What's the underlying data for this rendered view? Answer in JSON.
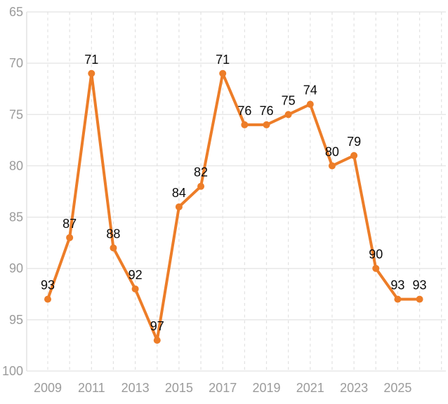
{
  "chart_data": {
    "type": "line",
    "title": "",
    "xlabel": "",
    "ylabel": "",
    "x": [
      2009,
      2010,
      2011,
      2012,
      2013,
      2014,
      2015,
      2016,
      2017,
      2018,
      2019,
      2020,
      2021,
      2022,
      2023,
      2024,
      2025,
      2026
    ],
    "values": [
      93,
      87,
      71,
      88,
      92,
      97,
      84,
      82,
      71,
      76,
      76,
      75,
      74,
      80,
      79,
      90,
      93,
      93
    ],
    "data_labels": [
      "93",
      "87",
      "71",
      "88",
      "92",
      "97",
      "84",
      "82",
      "71",
      "76",
      "76",
      "75",
      "74",
      "80",
      "79",
      "90",
      "93",
      "93"
    ],
    "y_ticks": [
      "65",
      "70",
      "75",
      "80",
      "85",
      "90",
      "95",
      "100"
    ],
    "y_tick_values": [
      65,
      70,
      75,
      80,
      85,
      90,
      95,
      100
    ],
    "x_tick_labels": [
      "2009",
      "2011",
      "2013",
      "2015",
      "2017",
      "2019",
      "2021",
      "2023",
      "2025"
    ],
    "x_tick_years": [
      2009,
      2011,
      2013,
      2015,
      2017,
      2019,
      2021,
      2023,
      2025
    ],
    "ylim": [
      65,
      100
    ],
    "y_axis_inverted": true,
    "x_grid_years": [
      2009,
      2027
    ],
    "grid": {
      "horizontal": "solid",
      "vertical": "dashed"
    },
    "legend": "none",
    "colors": {
      "line": "#ED7D28",
      "point": "#ED7D28",
      "data_label": "#0A0A0A",
      "axis_label": "#9B9B9B",
      "h_gridline": "#E8E8E8",
      "v_gridline": "#E2E2E2",
      "axis_line": "#E2E2E2",
      "background": "#FFFFFF"
    }
  }
}
